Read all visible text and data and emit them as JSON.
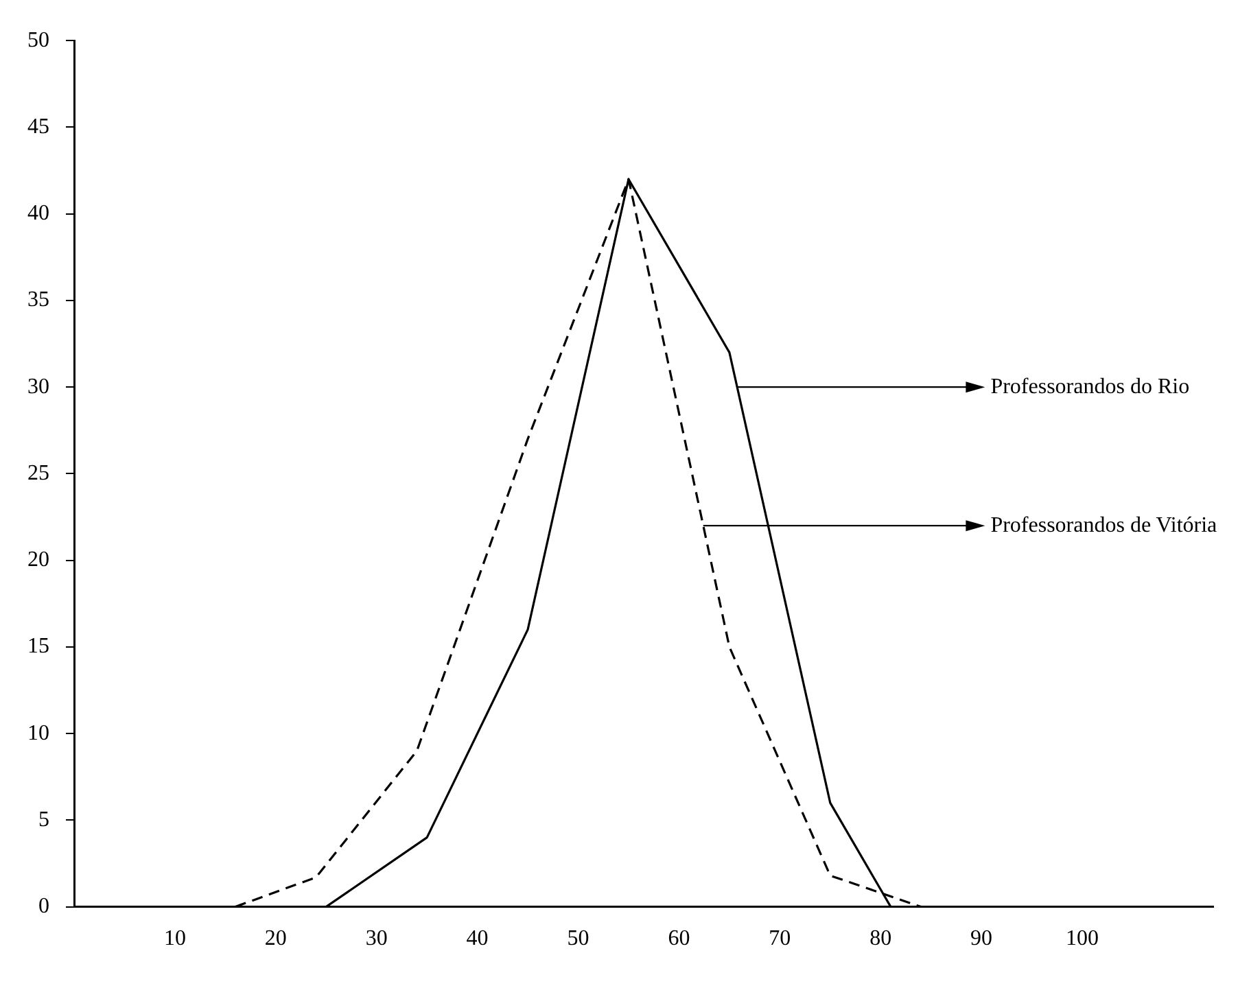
{
  "chart_data": {
    "type": "line",
    "xlim": [
      0,
      113
    ],
    "xticks": [
      10,
      20,
      30,
      40,
      50,
      60,
      70,
      80,
      90,
      100
    ],
    "ylim": [
      0,
      50
    ],
    "yticks": [
      0,
      5,
      10,
      15,
      20,
      25,
      30,
      35,
      40,
      45,
      50
    ],
    "grid": false,
    "legend": "right",
    "marker": "none",
    "series": [
      {
        "name": "Professorandos do Rio",
        "color": "#000000",
        "line_style": "solid",
        "x": [
          25,
          35,
          45,
          55,
          65,
          75,
          81
        ],
        "values": [
          0,
          4,
          16,
          42,
          32,
          6,
          0
        ]
      },
      {
        "name": "Professorandos de Vitória",
        "color": "#000000",
        "line_style": "dashed",
        "x": [
          16,
          24,
          34,
          45,
          55,
          65,
          75,
          84
        ],
        "values": [
          0,
          1.7,
          9,
          27,
          42,
          15,
          1.8,
          0
        ]
      }
    ]
  }
}
